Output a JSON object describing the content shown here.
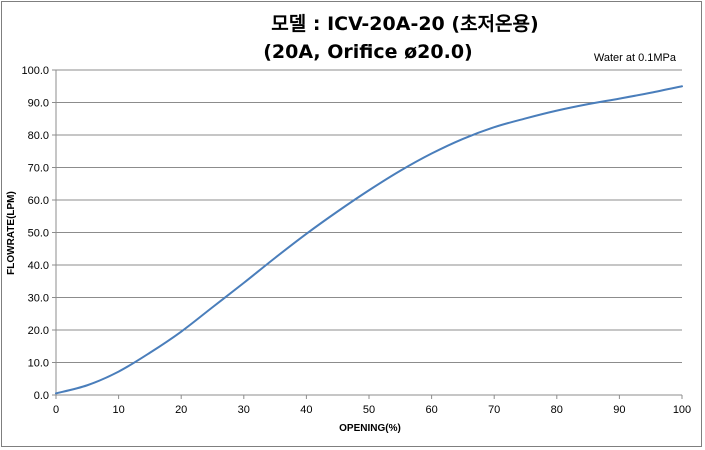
{
  "chart_data": {
    "type": "line",
    "title": "모델 : ICV-20A-20 (초저온용)",
    "subtitle": "(20A, Orifice ø20.0)",
    "annotation": "Water at 0.1MPa",
    "xlabel": "OPENING(%)",
    "ylabel": "FLOWRATE(LPM)",
    "xlim": [
      0,
      100
    ],
    "ylim": [
      0,
      100
    ],
    "x_ticks": [
      "0",
      "10",
      "20",
      "30",
      "40",
      "50",
      "60",
      "70",
      "80",
      "90",
      "100"
    ],
    "y_ticks": [
      "0.0",
      "10.0",
      "20.0",
      "30.0",
      "40.0",
      "50.0",
      "60.0",
      "70.0",
      "80.0",
      "90.0",
      "100.0"
    ],
    "grid": "horizontal",
    "series": [
      {
        "color": "#4a7ebb",
        "x": [
          0,
          5,
          10,
          15,
          20,
          25,
          30,
          35,
          40,
          45,
          50,
          55,
          60,
          65,
          70,
          75,
          80,
          85,
          90,
          95,
          100
        ],
        "y": [
          0.5,
          3.0,
          7.2,
          13.0,
          19.5,
          27.0,
          34.5,
          42.2,
          49.6,
          56.5,
          63.0,
          69.0,
          74.3,
          78.8,
          82.4,
          85.1,
          87.5,
          89.5,
          91.2,
          93.0,
          95.0
        ]
      }
    ]
  }
}
